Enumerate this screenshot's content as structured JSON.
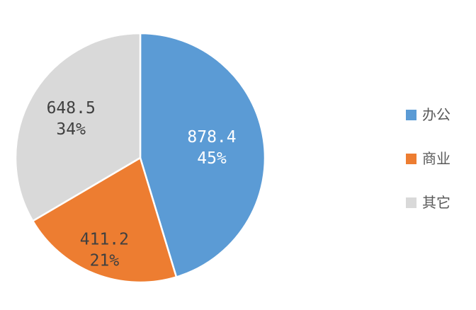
{
  "chart_data": {
    "type": "pie",
    "title": "",
    "legend_position": "right",
    "start_angle_deg": 0,
    "direction": "clockwise",
    "categories": [
      "办公",
      "商业",
      "其它"
    ],
    "values": [
      878.4,
      411.2,
      648.5
    ],
    "value_labels": [
      "878.4",
      "411.2",
      "648.5"
    ],
    "percent_labels": [
      "45%",
      "21%",
      "34%"
    ],
    "colors": [
      "#5B9BD5",
      "#ED7D31",
      "#D9D9D9"
    ],
    "slice_border_color": "#FFFFFF",
    "label_text_colors": [
      "#FFFFFF",
      "#404040",
      "#404040"
    ],
    "legend_text_color": "#595959",
    "background_color": "#FFFFFF"
  }
}
